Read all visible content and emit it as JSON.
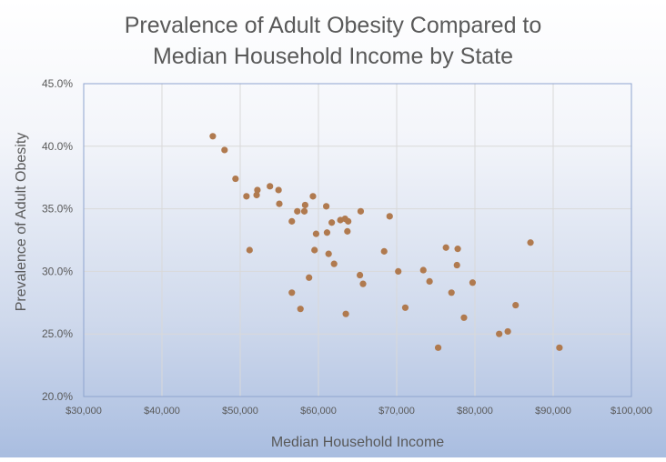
{
  "chart_data": {
    "type": "scatter",
    "title_lines": [
      "Prevalence of Adult Obesity Compared to",
      "Median Household Income by State"
    ],
    "xlabel": "Median Household Income",
    "ylabel": "Prevalence of Adult Obesity",
    "xlim": [
      30000,
      100000
    ],
    "ylim": [
      0.2,
      0.45
    ],
    "x_ticks": [
      30000,
      40000,
      50000,
      60000,
      70000,
      80000,
      90000,
      100000
    ],
    "x_tick_labels": [
      "$30,000",
      "$40,000",
      "$50,000",
      "$60,000",
      "$70,000",
      "$80,000",
      "$90,000",
      "$100,000"
    ],
    "y_ticks": [
      0.2,
      0.25,
      0.3,
      0.35,
      0.4,
      0.45
    ],
    "y_tick_labels": [
      "20.0%",
      "25.0%",
      "30.0%",
      "35.0%",
      "40.0%",
      "45.0%"
    ],
    "grid": true,
    "colors": {
      "marker": "#b07a4f",
      "plot_border": "#8ea4cf",
      "grid": "#d9d9d9",
      "title": "#595959",
      "axis_text": "#595959"
    },
    "points": [
      [
        46500,
        0.408
      ],
      [
        48000,
        0.397
      ],
      [
        49400,
        0.374
      ],
      [
        50800,
        0.36
      ],
      [
        51200,
        0.317
      ],
      [
        52100,
        0.361
      ],
      [
        52200,
        0.365
      ],
      [
        53800,
        0.368
      ],
      [
        54900,
        0.365
      ],
      [
        55000,
        0.354
      ],
      [
        56600,
        0.34
      ],
      [
        56600,
        0.283
      ],
      [
        57300,
        0.348
      ],
      [
        57700,
        0.27
      ],
      [
        58200,
        0.348
      ],
      [
        58300,
        0.353
      ],
      [
        58800,
        0.295
      ],
      [
        59300,
        0.36
      ],
      [
        59500,
        0.317
      ],
      [
        59700,
        0.33
      ],
      [
        61000,
        0.352
      ],
      [
        61100,
        0.331
      ],
      [
        61300,
        0.314
      ],
      [
        61700,
        0.339
      ],
      [
        62000,
        0.306
      ],
      [
        62800,
        0.341
      ],
      [
        63400,
        0.342
      ],
      [
        63500,
        0.266
      ],
      [
        63700,
        0.332
      ],
      [
        63800,
        0.34
      ],
      [
        65400,
        0.348
      ],
      [
        65300,
        0.297
      ],
      [
        65700,
        0.29
      ],
      [
        68400,
        0.316
      ],
      [
        69100,
        0.344
      ],
      [
        70200,
        0.3
      ],
      [
        71100,
        0.271
      ],
      [
        73400,
        0.301
      ],
      [
        74200,
        0.292
      ],
      [
        75300,
        0.239
      ],
      [
        76300,
        0.319
      ],
      [
        77000,
        0.283
      ],
      [
        77700,
        0.305
      ],
      [
        77800,
        0.318
      ],
      [
        78600,
        0.263
      ],
      [
        79700,
        0.291
      ],
      [
        83100,
        0.25
      ],
      [
        84200,
        0.252
      ],
      [
        85200,
        0.273
      ],
      [
        87100,
        0.323
      ],
      [
        90800,
        0.239
      ]
    ]
  }
}
